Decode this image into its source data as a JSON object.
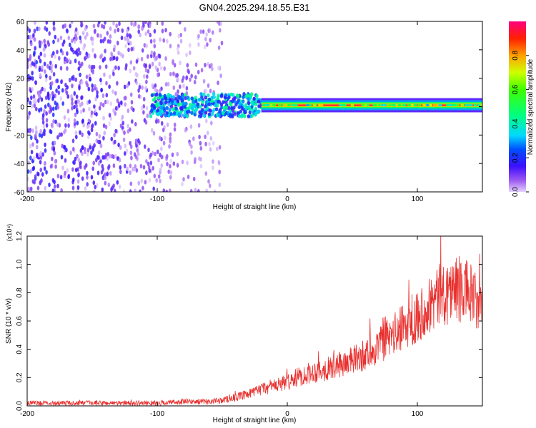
{
  "title": "GN04.2025.294.18.55.E31",
  "chart_data": [
    {
      "type": "heatmap",
      "xlabel": "Height of straight line (km)",
      "ylabel": "Frequency (Hz)",
      "xlim": [
        -200,
        150
      ],
      "ylim": [
        -60,
        60
      ],
      "xticks": [
        -200,
        -100,
        0,
        100
      ],
      "xtick_labels": [
        "-200",
        "-100",
        "0",
        "100"
      ],
      "yticks": [
        -60,
        -40,
        -20,
        0,
        20,
        40,
        60
      ],
      "ytick_labels": [
        "-60",
        "-40",
        "-20",
        "0",
        "20",
        "40",
        "60"
      ],
      "colorbar": {
        "label": "Normalized spectral amplitude",
        "range": [
          0,
          1
        ],
        "ticks": [
          0,
          0.2,
          0.4,
          0.6,
          0.8
        ],
        "tick_labels": [
          "0.0",
          "0.2",
          "0.4",
          "0.6",
          "0.8"
        ],
        "colormap": "rainbow"
      },
      "band": {
        "frequency": 1,
        "x_start": -20,
        "x_end": 150,
        "amplitude": 0.95
      },
      "noise_region": {
        "x_start": -200,
        "x_end": -50,
        "amplitude": 0.15
      },
      "turbulent_region": {
        "x_start": -105,
        "x_end": -20,
        "amplitude": 0.35
      }
    },
    {
      "type": "line",
      "xlabel": "Height of straight line (km)",
      "ylabel": "SNR (10 * v/v)",
      "y_multiplier": "(x10⁴)",
      "xlim": [
        -200,
        150
      ],
      "ylim": [
        0,
        1.2
      ],
      "xticks": [
        -200,
        -100,
        0,
        100
      ],
      "xtick_labels": [
        "-200",
        "-100",
        "0",
        "100"
      ],
      "yticks": [
        0,
        0.2,
        0.4,
        0.6,
        0.8,
        1.0,
        1.2
      ],
      "ytick_labels": [
        "0.0",
        "0.2",
        "0.4",
        "0.6",
        "0.8",
        "1.0",
        "1.2"
      ],
      "color": "#e8302e",
      "series": [
        {
          "name": "SNR",
          "x": [
            -200,
            -180,
            -160,
            -140,
            -120,
            -100,
            -80,
            -60,
            -50,
            -40,
            -30,
            -20,
            -10,
            0,
            10,
            20,
            30,
            40,
            50,
            60,
            70,
            80,
            90,
            100,
            110,
            120,
            130,
            140,
            145,
            150
          ],
          "y": [
            0.02,
            0.02,
            0.02,
            0.02,
            0.02,
            0.02,
            0.03,
            0.03,
            0.04,
            0.06,
            0.08,
            0.12,
            0.14,
            0.17,
            0.21,
            0.24,
            0.26,
            0.29,
            0.32,
            0.36,
            0.42,
            0.49,
            0.56,
            0.64,
            0.72,
            0.8,
            0.83,
            0.8,
            0.72,
            0.65
          ]
        }
      ]
    }
  ]
}
